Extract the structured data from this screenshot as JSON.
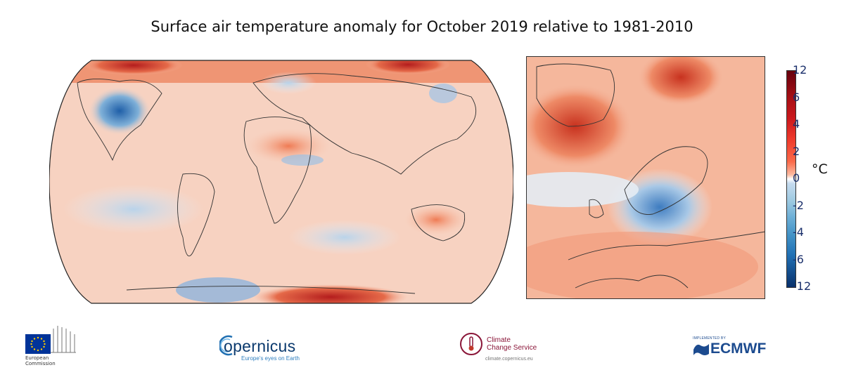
{
  "title": "Surface air temperature anomaly for October 2019 relative to 1981-2010",
  "colorbar": {
    "unit": "°C",
    "ticks": [
      "12",
      "6",
      "4",
      "2",
      "0",
      "-2",
      "-4",
      "-6",
      "-12"
    ],
    "colors_warm": "#cb181d",
    "colors_cold": "#2171b5"
  },
  "logos": {
    "eu": {
      "line1": "European",
      "line2": "Commission"
    },
    "copernicus": {
      "word": "opernicus",
      "tagline": "Europe's eyes on Earth"
    },
    "c3s": {
      "line1": "Climate",
      "line2": "Change Service",
      "url": "climate.copernicus.eu"
    },
    "ecmwf": {
      "implemented": "IMPLEMENTED BY",
      "word": "ECMWF"
    }
  }
}
